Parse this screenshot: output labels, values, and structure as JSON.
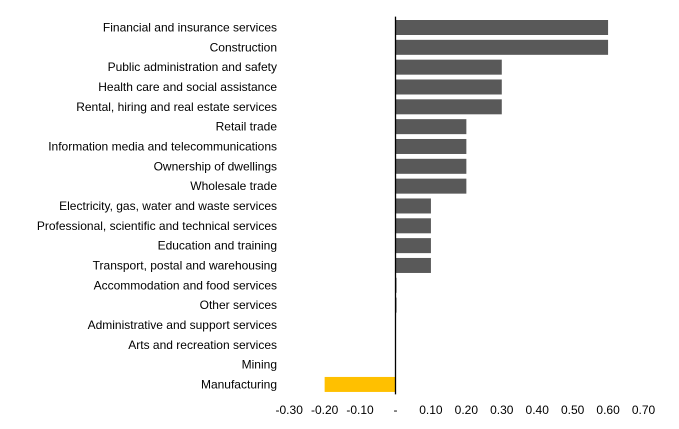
{
  "chart_data": {
    "type": "bar",
    "orientation": "horizontal",
    "title": "",
    "xlabel": "",
    "ylabel": "",
    "xlim": [
      -0.3,
      0.7
    ],
    "grid": false,
    "legend": "none",
    "categories": [
      "Financial and insurance services",
      "Construction",
      "Public administration and safety",
      "Health care and social assistance",
      "Rental, hiring and real estate services",
      "Retail trade",
      "Information media and telecommunications",
      "Ownership of dwellings",
      "Wholesale trade",
      "Electricity, gas, water and waste services",
      "Professional, scientific and technical services",
      "Education and training",
      "Transport, postal and warehousing",
      "Accommodation and food services",
      "Other services",
      "Administrative and support services",
      "Arts and recreation services",
      "Mining",
      "Manufacturing"
    ],
    "values": [
      0.6,
      0.6,
      0.3,
      0.3,
      0.3,
      0.2,
      0.2,
      0.2,
      0.2,
      0.1,
      0.1,
      0.1,
      0.1,
      0.003,
      0.003,
      0.0,
      0.0,
      0.0,
      -0.2
    ],
    "x_ticks": [
      -0.3,
      -0.2,
      -0.1,
      0,
      0.1,
      0.2,
      0.3,
      0.4,
      0.5,
      0.6,
      0.7
    ],
    "x_tick_labels": [
      "-0.30",
      "-0.20",
      "-0.10",
      "-",
      "0.10",
      "0.20",
      "0.30",
      "0.40",
      "0.50",
      "0.60",
      "0.70"
    ],
    "colors": {
      "positive": "#595959",
      "negative": "#FFC000",
      "axis": "#000000"
    }
  }
}
